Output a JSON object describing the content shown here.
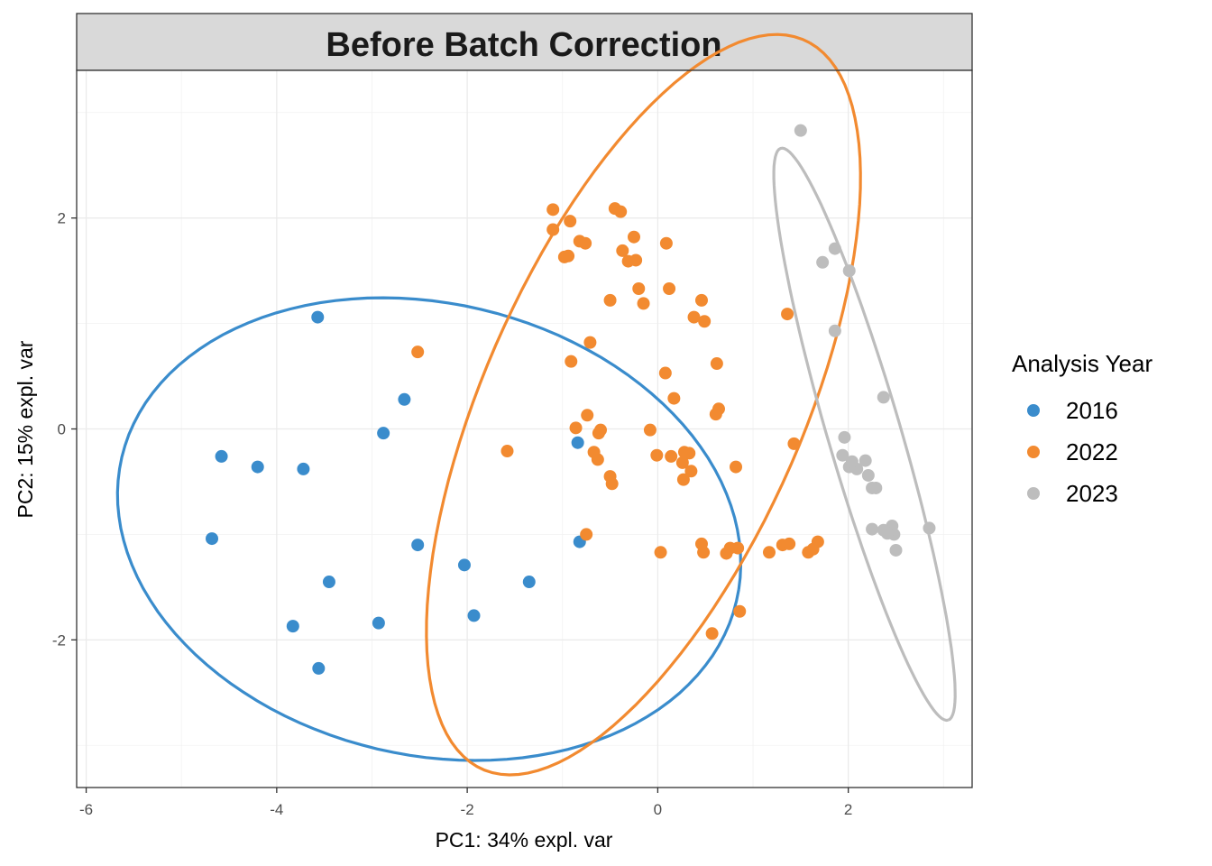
{
  "chart_data": {
    "type": "scatter",
    "title": "Before Batch Correction",
    "xlabel": "PC1: 34% expl. var",
    "ylabel": "PC2: 15% expl. var",
    "xlim": [
      -6.1,
      3.3
    ],
    "ylim": [
      -3.4,
      3.4
    ],
    "x_ticks": [
      -6,
      -4,
      -2,
      0,
      2
    ],
    "y_ticks": [
      -2,
      0,
      2
    ],
    "x_tick_labels": [
      "-6",
      "-4",
      "-2",
      "0",
      "2"
    ],
    "y_tick_labels": [
      "-2",
      "0",
      "2"
    ],
    "grid": true,
    "legend": {
      "title": "Analysis Year",
      "position": "right"
    },
    "series": [
      {
        "name": "2016",
        "color": "#3a8ccc",
        "points": [
          [
            -3.57,
            1.06
          ],
          [
            -2.66,
            0.28
          ],
          [
            -2.88,
            -0.04
          ],
          [
            -4.58,
            -0.26
          ],
          [
            -4.2,
            -0.36
          ],
          [
            -3.72,
            -0.38
          ],
          [
            -0.84,
            -0.13
          ],
          [
            -4.68,
            -1.04
          ],
          [
            -2.52,
            -1.1
          ],
          [
            -2.03,
            -1.29
          ],
          [
            -0.82,
            -1.07
          ],
          [
            -3.45,
            -1.45
          ],
          [
            -1.35,
            -1.45
          ],
          [
            -1.93,
            -1.77
          ],
          [
            -3.83,
            -1.87
          ],
          [
            -2.93,
            -1.84
          ],
          [
            -3.56,
            -2.27
          ]
        ],
        "ellipse": {
          "center": [
            -2.4,
            -0.95
          ],
          "semi_axes": [
            3.3,
            2.15
          ],
          "angle_deg": -10
        }
      },
      {
        "name": "2022",
        "color": "#f28a30",
        "points": [
          [
            -1.1,
            2.08
          ],
          [
            -0.45,
            2.09
          ],
          [
            -0.39,
            2.06
          ],
          [
            -0.92,
            1.97
          ],
          [
            -1.1,
            1.89
          ],
          [
            -0.82,
            1.78
          ],
          [
            -0.25,
            1.82
          ],
          [
            -0.76,
            1.76
          ],
          [
            0.09,
            1.76
          ],
          [
            -0.37,
            1.69
          ],
          [
            -0.98,
            1.63
          ],
          [
            -0.94,
            1.64
          ],
          [
            -0.23,
            1.6
          ],
          [
            -0.31,
            1.59
          ],
          [
            -0.2,
            1.33
          ],
          [
            0.12,
            1.33
          ],
          [
            -0.5,
            1.22
          ],
          [
            0.46,
            1.22
          ],
          [
            -0.15,
            1.19
          ],
          [
            0.38,
            1.06
          ],
          [
            0.49,
            1.02
          ],
          [
            1.36,
            1.09
          ],
          [
            -0.71,
            0.82
          ],
          [
            -2.52,
            0.73
          ],
          [
            -0.91,
            0.64
          ],
          [
            0.62,
            0.62
          ],
          [
            0.08,
            0.53
          ],
          [
            0.17,
            0.29
          ],
          [
            -0.74,
            0.13
          ],
          [
            0.64,
            0.19
          ],
          [
            0.61,
            0.14
          ],
          [
            -0.86,
            0.01
          ],
          [
            -0.6,
            -0.01
          ],
          [
            -0.62,
            -0.04
          ],
          [
            -0.08,
            -0.01
          ],
          [
            -1.58,
            -0.21
          ],
          [
            -0.67,
            -0.22
          ],
          [
            1.43,
            -0.14
          ],
          [
            0.28,
            -0.22
          ],
          [
            0.33,
            -0.23
          ],
          [
            -0.63,
            -0.29
          ],
          [
            -0.01,
            -0.25
          ],
          [
            0.14,
            -0.26
          ],
          [
            0.26,
            -0.32
          ],
          [
            0.35,
            -0.4
          ],
          [
            0.82,
            -0.36
          ],
          [
            -0.5,
            -0.45
          ],
          [
            -0.48,
            -0.52
          ],
          [
            0.27,
            -0.48
          ],
          [
            -0.75,
            -1.0
          ],
          [
            0.46,
            -1.09
          ],
          [
            0.84,
            -1.13
          ],
          [
            0.03,
            -1.17
          ],
          [
            0.48,
            -1.17
          ],
          [
            0.72,
            -1.18
          ],
          [
            0.76,
            -1.13
          ],
          [
            1.17,
            -1.17
          ],
          [
            1.31,
            -1.1
          ],
          [
            1.38,
            -1.09
          ],
          [
            1.58,
            -1.17
          ],
          [
            1.63,
            -1.14
          ],
          [
            1.68,
            -1.07
          ],
          [
            0.86,
            -1.73
          ],
          [
            0.57,
            -1.94
          ]
        ],
        "ellipse": {
          "center": [
            -0.15,
            0.23
          ],
          "semi_axes": [
            3.85,
            1.64
          ],
          "angle_deg": 63
        }
      },
      {
        "name": "2023",
        "color": "#bdbdbd",
        "points": [
          [
            1.5,
            2.83
          ],
          [
            1.86,
            1.71
          ],
          [
            1.73,
            1.58
          ],
          [
            2.01,
            1.5
          ],
          [
            1.86,
            0.93
          ],
          [
            2.37,
            0.3
          ],
          [
            1.96,
            -0.08
          ],
          [
            2.18,
            -0.3
          ],
          [
            1.94,
            -0.25
          ],
          [
            2.01,
            -0.36
          ],
          [
            2.09,
            -0.38
          ],
          [
            2.04,
            -0.31
          ],
          [
            2.21,
            -0.44
          ],
          [
            2.29,
            -0.56
          ],
          [
            2.25,
            -0.56
          ],
          [
            2.46,
            -0.92
          ],
          [
            2.85,
            -0.94
          ],
          [
            2.25,
            -0.95
          ],
          [
            2.37,
            -0.96
          ],
          [
            2.48,
            -1.0
          ],
          [
            2.5,
            -1.15
          ],
          [
            2.41,
            -0.99
          ]
        ],
        "ellipse": {
          "center": [
            2.17,
            -0.05
          ],
          "semi_axes": [
            2.85,
            0.38
          ],
          "angle_deg": -72
        }
      }
    ]
  }
}
